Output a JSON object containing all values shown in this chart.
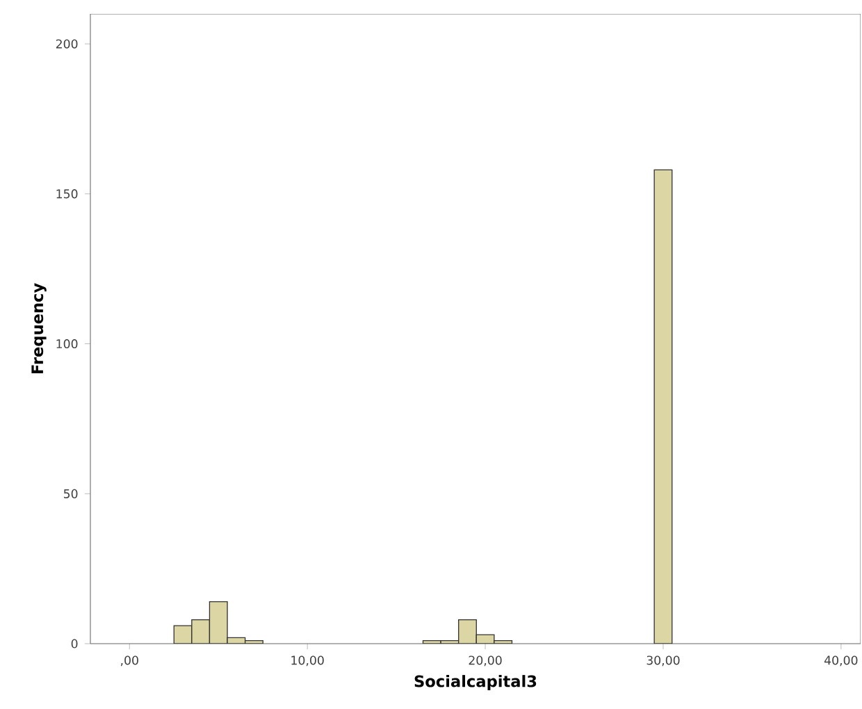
{
  "chart_data": {
    "type": "histogram",
    "xlabel": "Socialcapital3",
    "ylabel": "Frequency",
    "bins": [
      2.5,
      3.5,
      4.5,
      5.5,
      6.5,
      7.5,
      8.5,
      9.5,
      10.5,
      11.5,
      12.5,
      13.5,
      14.5,
      15.5,
      16.5,
      17.5,
      18.5,
      19.5,
      20.5,
      21.5,
      22.5,
      23.5,
      24.5,
      25.5,
      26.5,
      27.5,
      28.5,
      29.5,
      30.5
    ],
    "values": [
      6,
      8,
      14,
      2,
      1,
      0,
      0,
      0,
      0,
      0,
      0,
      0,
      0,
      0,
      1,
      1,
      8,
      3,
      1,
      0,
      0,
      0,
      0,
      0,
      0,
      0,
      0,
      158
    ],
    "color": "#dcd6a4",
    "xlim": [
      -2.2,
      41.1
    ],
    "ylim": [
      0,
      210
    ],
    "xticks": [
      {
        "value": 0,
        "label": ",00"
      },
      {
        "value": 10,
        "label": "10,00"
      },
      {
        "value": 20,
        "label": "20,00"
      },
      {
        "value": 30,
        "label": "30,00"
      },
      {
        "value": 40,
        "label": "40,00"
      }
    ],
    "yticks": [
      0,
      50,
      100,
      150,
      200
    ],
    "grid": false
  }
}
